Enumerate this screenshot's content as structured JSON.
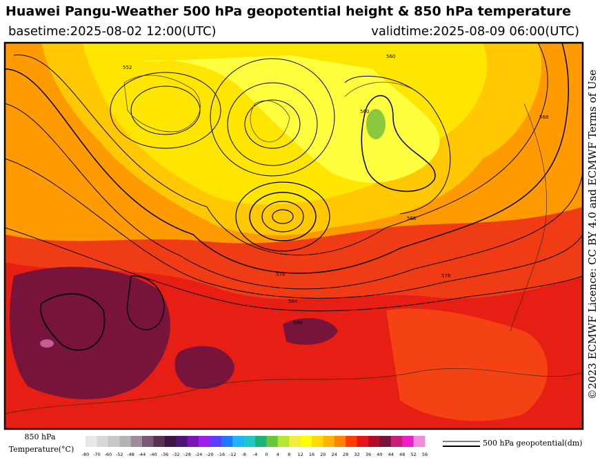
{
  "header": {
    "title": "Huawei Pangu-Weather 500 hPa geopotential height & 850 hPa temperature",
    "basetime": "basetime:2025-08-02 12:00(UTC)",
    "validtime": "validtime:2025-08-09 06:00(UTC)"
  },
  "license": "©2023 ECMWF Licence: CC BY 4.0 and ECMWF Terms of Use",
  "map": {
    "contour_labels": [
      "552",
      "560",
      "568",
      "576",
      "584",
      "588",
      "576",
      "560",
      "568"
    ]
  },
  "legend": {
    "title_line1": "850 hPa",
    "title_line2": "Temperature(°C)",
    "ticks": [
      -80,
      -70,
      -60,
      -52,
      -48,
      -44,
      -40,
      -36,
      -32,
      -28,
      -24,
      -20,
      -16,
      -12,
      -8,
      -4,
      0,
      4,
      8,
      12,
      16,
      20,
      24,
      28,
      32,
      36,
      40,
      44,
      48,
      52,
      56
    ],
    "colors": [
      "#e8e8e8",
      "#d8d8d8",
      "#c8c8c8",
      "#b4b4b4",
      "#a08ca0",
      "#785a78",
      "#5a3250",
      "#3c1446",
      "#501478",
      "#7814b4",
      "#a01ee6",
      "#5a3cff",
      "#1e78ff",
      "#1eb4ff",
      "#1ec8c8",
      "#1eb478",
      "#64c83c",
      "#b4e632",
      "#f0f03c",
      "#ffff00",
      "#ffdc00",
      "#ffb400",
      "#ff8200",
      "#ff3c00",
      "#e61414",
      "#b40a28",
      "#78143c",
      "#c81e78",
      "#f01ec8",
      "#f08cdc"
    ],
    "contour_label": "500 hPa geopotential(dm)"
  }
}
